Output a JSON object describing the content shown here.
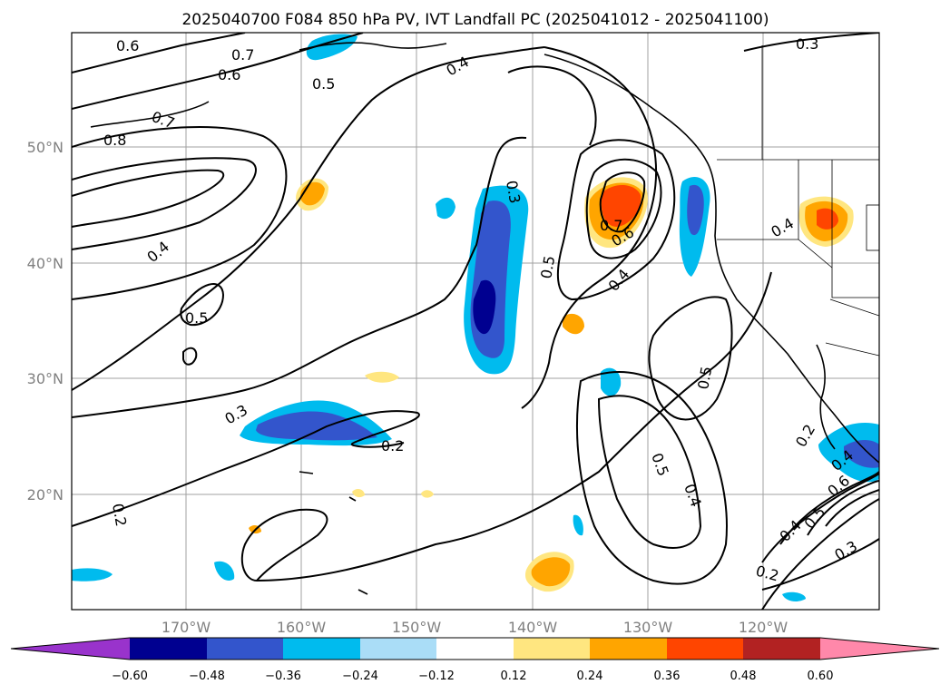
{
  "title": "2025040700 F084 850 hPa PV, IVT Landfall PC (2025041012 - 2025041100)",
  "map": {
    "lon_labels": [
      "170°W",
      "160°W",
      "150°W",
      "140°W",
      "130°W",
      "120°W"
    ],
    "lat_labels": [
      "50°N",
      "40°N",
      "30°N",
      "20°N"
    ]
  },
  "colorbar": {
    "colors": [
      "#9933cc",
      "#000090",
      "#3355cc",
      "#00bbee",
      "#aaddf7",
      "#ffffff",
      "#ffe680",
      "#ffa500",
      "#ff4500",
      "#b22222",
      "#ff88aa"
    ],
    "tick_labels": [
      "−0.60",
      "−0.48",
      "−0.36",
      "−0.24",
      "−0.12",
      "0.12",
      "0.24",
      "0.36",
      "0.48",
      "0.60"
    ]
  },
  "contour_labels": [
    "0.6",
    "0.7",
    "0.6",
    "0.5",
    "0.7",
    "0.8",
    "0.4",
    "0.3",
    "0.4",
    "0.5",
    "0.7",
    "0.6",
    "0.5",
    "0.4",
    "0.4",
    "0.3",
    "0.4",
    "0.5",
    "0.3",
    "0.2",
    "0.2",
    "0.5",
    "0.4",
    "0.2",
    "0.6",
    "0.5",
    "0.4",
    "0.3",
    "0.2"
  ],
  "colors": {
    "land_border": "#000000",
    "grid": "#a0a0a0"
  }
}
